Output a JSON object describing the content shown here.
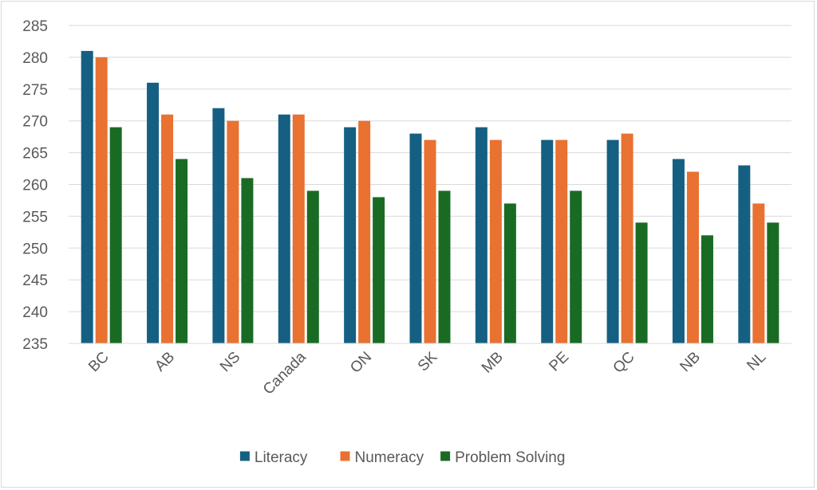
{
  "chart_data": {
    "type": "bar",
    "categories": [
      "BC",
      "AB",
      "NS",
      "Canada",
      "ON",
      "SK",
      "MB",
      "PE",
      "QC",
      "NB",
      "NL"
    ],
    "series": [
      {
        "name": "Literacy",
        "color": "#156082",
        "values": [
          281,
          276,
          272,
          271,
          269,
          268,
          269,
          267,
          267,
          264,
          263
        ]
      },
      {
        "name": "Numeracy",
        "color": "#E97132",
        "values": [
          280,
          271,
          270,
          271,
          270,
          267,
          267,
          267,
          268,
          262,
          257
        ]
      },
      {
        "name": "Problem Solving",
        "color": "#196B24",
        "values": [
          269,
          264,
          261,
          259,
          258,
          259,
          257,
          259,
          254,
          252,
          254
        ]
      }
    ],
    "ylim": [
      235,
      285
    ],
    "yticks": [
      235,
      240,
      245,
      250,
      255,
      260,
      265,
      270,
      275,
      280,
      285
    ],
    "grid": true,
    "legend_position": "bottom"
  }
}
